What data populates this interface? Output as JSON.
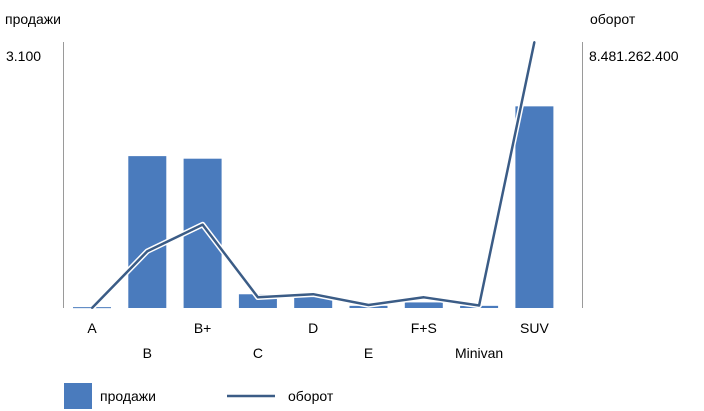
{
  "chart_data": {
    "type": "bar",
    "title": "",
    "categories": [
      "A",
      "B",
      "B+",
      "C",
      "D",
      "E",
      "F+S",
      "Minivan",
      "SUV"
    ],
    "y_left": {
      "label": "продажи",
      "max_label": "3.100",
      "range": [
        0,
        3100
      ]
    },
    "y_right": {
      "label": "оборот",
      "max_label": "8.481.262.400",
      "range": [
        0,
        8481262400
      ]
    },
    "series": [
      {
        "name": "продажи",
        "kind": "bar",
        "axis": "left",
        "color": "#4a7bbd",
        "values": [
          10,
          1770,
          1740,
          160,
          130,
          25,
          65,
          25,
          2350
        ]
      },
      {
        "name": "оборот",
        "kind": "line",
        "axis": "right",
        "color": "#3b5c86",
        "values": [
          0,
          1810000000,
          2660000000,
          340000000,
          440000000,
          95000000,
          340000000,
          80000000,
          8481262400
        ]
      }
    ],
    "grid": false,
    "legend": "bottom-left"
  }
}
